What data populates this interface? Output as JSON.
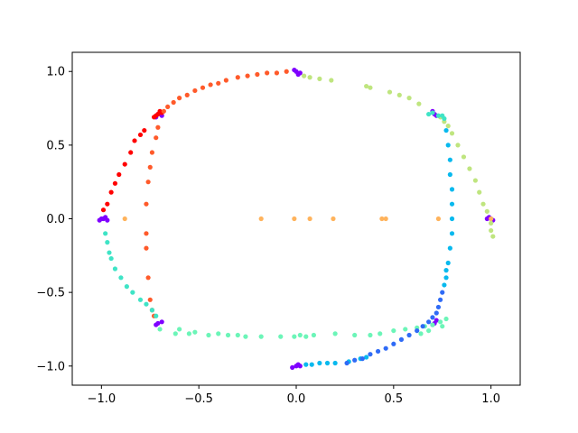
{
  "chart_data": {
    "type": "scatter",
    "title": "",
    "xlabel": "",
    "ylabel": "",
    "xlim": [
      -1.15,
      1.15
    ],
    "ylim": [
      -1.13,
      1.13
    ],
    "x_ticks": [
      -1.0,
      -0.5,
      0.0,
      0.5,
      1.0
    ],
    "x_tick_labels": [
      "−1.0",
      "−0.5",
      "0.0",
      "0.5",
      "1.0"
    ],
    "y_ticks": [
      -1.0,
      -0.5,
      0.0,
      0.5,
      1.0
    ],
    "y_tick_labels": [
      "−1.0",
      "−0.5",
      "0.0",
      "0.5",
      "1.0"
    ],
    "grid": false,
    "legend": "none",
    "colors": {
      "purple": "#7f00ff",
      "red": "#ff0000",
      "orange_red": "#ff5a2a",
      "light_orange": "#ffb35c",
      "light_green": "#bfe57f",
      "aquamarine": "#6cf5b8",
      "turquoise": "#3fe4c6",
      "deep_sky": "#08b9ee",
      "blue": "#2f6bf6"
    },
    "series": [
      {
        "color": "purple",
        "points": [
          [
            -1.0,
            0.0
          ],
          [
            -0.98,
            0.01
          ],
          [
            -1.01,
            -0.01
          ],
          [
            -0.99,
            0.0
          ],
          [
            -0.97,
            -0.01
          ],
          [
            -0.71,
            0.71
          ],
          [
            -0.69,
            0.7
          ],
          [
            -0.7,
            0.72
          ],
          [
            -0.72,
            0.69
          ],
          [
            0.0,
            1.0
          ],
          [
            0.02,
            0.99
          ],
          [
            -0.01,
            1.01
          ],
          [
            0.01,
            0.98
          ],
          [
            0.71,
            0.71
          ],
          [
            0.7,
            0.73
          ],
          [
            0.72,
            0.7
          ],
          [
            1.0,
            0.0
          ],
          [
            0.99,
            0.01
          ],
          [
            1.01,
            -0.01
          ],
          [
            0.98,
            0.0
          ],
          [
            0.71,
            -0.71
          ],
          [
            0.72,
            -0.69
          ],
          [
            0.7,
            -0.72
          ],
          [
            0.0,
            -1.0
          ],
          [
            0.01,
            -0.99
          ],
          [
            -0.02,
            -1.01
          ],
          [
            0.02,
            -1.0
          ],
          [
            -0.71,
            -0.71
          ],
          [
            -0.69,
            -0.7
          ],
          [
            -0.72,
            -0.72
          ]
        ]
      },
      {
        "color": "red",
        "points": [
          [
            -0.71,
            0.71
          ],
          [
            -0.73,
            0.69
          ],
          [
            -0.7,
            0.73
          ],
          [
            -0.72,
            0.7
          ],
          [
            -0.69,
            0.72
          ],
          [
            -0.78,
            0.6
          ],
          [
            -0.8,
            0.57
          ],
          [
            -0.83,
            0.53
          ],
          [
            -0.85,
            0.45
          ],
          [
            -0.88,
            0.37
          ],
          [
            -0.91,
            0.3
          ],
          [
            -0.93,
            0.24
          ],
          [
            -0.95,
            0.18
          ],
          [
            -0.97,
            0.1
          ],
          [
            -0.99,
            0.06
          ]
        ]
      },
      {
        "color": "orange_red",
        "points": [
          [
            -0.68,
            0.73
          ],
          [
            -0.66,
            0.76
          ],
          [
            -0.63,
            0.79
          ],
          [
            -0.6,
            0.82
          ],
          [
            -0.56,
            0.84
          ],
          [
            -0.52,
            0.87
          ],
          [
            -0.48,
            0.89
          ],
          [
            -0.44,
            0.91
          ],
          [
            -0.4,
            0.92
          ],
          [
            -0.36,
            0.94
          ],
          [
            -0.3,
            0.96
          ],
          [
            -0.25,
            0.97
          ],
          [
            -0.2,
            0.98
          ],
          [
            -0.15,
            0.99
          ],
          [
            -0.1,
            0.99
          ],
          [
            -0.05,
            1.0
          ],
          [
            -0.71,
            0.62
          ],
          [
            -0.72,
            0.55
          ],
          [
            -0.74,
            0.45
          ],
          [
            -0.75,
            0.35
          ],
          [
            -0.76,
            0.25
          ],
          [
            -0.77,
            0.1
          ],
          [
            -0.77,
            -0.1
          ],
          [
            -0.77,
            -0.2
          ],
          [
            -0.76,
            -0.4
          ],
          [
            -0.75,
            -0.55
          ],
          [
            -0.74,
            -0.62
          ],
          [
            -0.73,
            -0.66
          ]
        ]
      },
      {
        "color": "light_orange",
        "points": [
          [
            -0.88,
            0.0
          ],
          [
            -0.18,
            0.0
          ],
          [
            -0.01,
            0.0
          ],
          [
            0.07,
            0.0
          ],
          [
            0.19,
            0.0
          ],
          [
            0.44,
            0.0
          ],
          [
            0.46,
            0.0
          ],
          [
            0.73,
            0.0
          ],
          [
            1.0,
            0.0
          ]
        ]
      },
      {
        "color": "light_green",
        "points": [
          [
            0.04,
            0.97
          ],
          [
            0.07,
            0.96
          ],
          [
            0.12,
            0.95
          ],
          [
            0.18,
            0.94
          ],
          [
            0.36,
            0.9
          ],
          [
            0.38,
            0.89
          ],
          [
            0.48,
            0.86
          ],
          [
            0.53,
            0.84
          ],
          [
            0.58,
            0.82
          ],
          [
            0.63,
            0.78
          ],
          [
            0.74,
            0.69
          ],
          [
            0.76,
            0.66
          ],
          [
            0.78,
            0.63
          ],
          [
            0.8,
            0.58
          ],
          [
            0.83,
            0.5
          ],
          [
            0.86,
            0.42
          ],
          [
            0.89,
            0.34
          ],
          [
            0.92,
            0.26
          ],
          [
            0.94,
            0.18
          ],
          [
            0.96,
            0.1
          ],
          [
            0.98,
            0.05
          ],
          [
            1.0,
            -0.03
          ],
          [
            1.0,
            -0.08
          ],
          [
            1.01,
            -0.12
          ]
        ]
      },
      {
        "color": "aquamarine",
        "points": [
          [
            -0.6,
            -0.75
          ],
          [
            -0.52,
            -0.77
          ],
          [
            -0.4,
            -0.78
          ],
          [
            -0.3,
            -0.79
          ],
          [
            -0.26,
            -0.8
          ],
          [
            -0.18,
            -0.8
          ],
          [
            -0.08,
            -0.8
          ],
          [
            -0.01,
            -0.8
          ],
          [
            0.02,
            -0.79
          ],
          [
            0.05,
            -0.8
          ],
          [
            0.09,
            -0.79
          ],
          [
            0.2,
            -0.78
          ],
          [
            0.3,
            -0.79
          ],
          [
            0.38,
            -0.79
          ],
          [
            0.43,
            -0.78
          ],
          [
            0.5,
            -0.76
          ],
          [
            0.56,
            -0.75
          ],
          [
            0.62,
            -0.74
          ],
          [
            0.66,
            -0.73
          ],
          [
            0.7,
            -0.72
          ],
          [
            0.74,
            -0.7
          ],
          [
            0.77,
            -0.68
          ],
          [
            0.75,
            -0.73
          ],
          [
            0.68,
            -0.76
          ],
          [
            0.64,
            -0.78
          ],
          [
            -0.62,
            -0.78
          ],
          [
            -0.55,
            -0.78
          ],
          [
            -0.45,
            -0.79
          ],
          [
            -0.35,
            -0.79
          ],
          [
            -0.7,
            -0.75
          ]
        ]
      },
      {
        "color": "turquoise",
        "points": [
          [
            -0.98,
            -0.1
          ],
          [
            -0.97,
            -0.16
          ],
          [
            -0.96,
            -0.23
          ],
          [
            -0.95,
            -0.27
          ],
          [
            -0.93,
            -0.34
          ],
          [
            -0.9,
            -0.4
          ],
          [
            -0.87,
            -0.46
          ],
          [
            -0.84,
            -0.5
          ],
          [
            -0.8,
            -0.55
          ],
          [
            -0.77,
            -0.58
          ],
          [
            -0.74,
            -0.62
          ],
          [
            -0.72,
            -0.66
          ],
          [
            0.7,
            0.72
          ],
          [
            0.73,
            0.7
          ],
          [
            0.68,
            0.71
          ],
          [
            0.76,
            0.68
          ],
          [
            0.75,
            0.7
          ]
        ]
      },
      {
        "color": "deep_sky",
        "points": [
          [
            0.77,
            0.6
          ],
          [
            0.78,
            0.5
          ],
          [
            0.79,
            0.4
          ],
          [
            0.79,
            0.3
          ],
          [
            0.8,
            0.2
          ],
          [
            0.8,
            0.1
          ],
          [
            0.8,
            0.0
          ],
          [
            0.8,
            -0.1
          ],
          [
            0.79,
            -0.2
          ],
          [
            0.78,
            -0.3
          ],
          [
            0.77,
            -0.35
          ],
          [
            0.77,
            -0.4
          ],
          [
            0.76,
            -0.45
          ],
          [
            0.05,
            -0.99
          ],
          [
            0.08,
            -0.99
          ],
          [
            0.12,
            -0.98
          ],
          [
            0.16,
            -0.98
          ],
          [
            0.2,
            -0.98
          ],
          [
            0.27,
            -0.97
          ],
          [
            0.33,
            -0.95
          ],
          [
            0.36,
            -0.94
          ]
        ]
      },
      {
        "color": "blue",
        "points": [
          [
            0.75,
            -0.5
          ],
          [
            0.74,
            -0.55
          ],
          [
            0.73,
            -0.6
          ],
          [
            0.72,
            -0.64
          ],
          [
            0.7,
            -0.67
          ],
          [
            0.68,
            -0.7
          ],
          [
            0.65,
            -0.73
          ],
          [
            0.62,
            -0.76
          ],
          [
            0.58,
            -0.79
          ],
          [
            0.54,
            -0.82
          ],
          [
            0.5,
            -0.85
          ],
          [
            0.46,
            -0.88
          ],
          [
            0.42,
            -0.9
          ],
          [
            0.38,
            -0.92
          ],
          [
            0.34,
            -0.95
          ],
          [
            0.3,
            -0.96
          ],
          [
            0.26,
            -0.98
          ]
        ]
      }
    ]
  }
}
